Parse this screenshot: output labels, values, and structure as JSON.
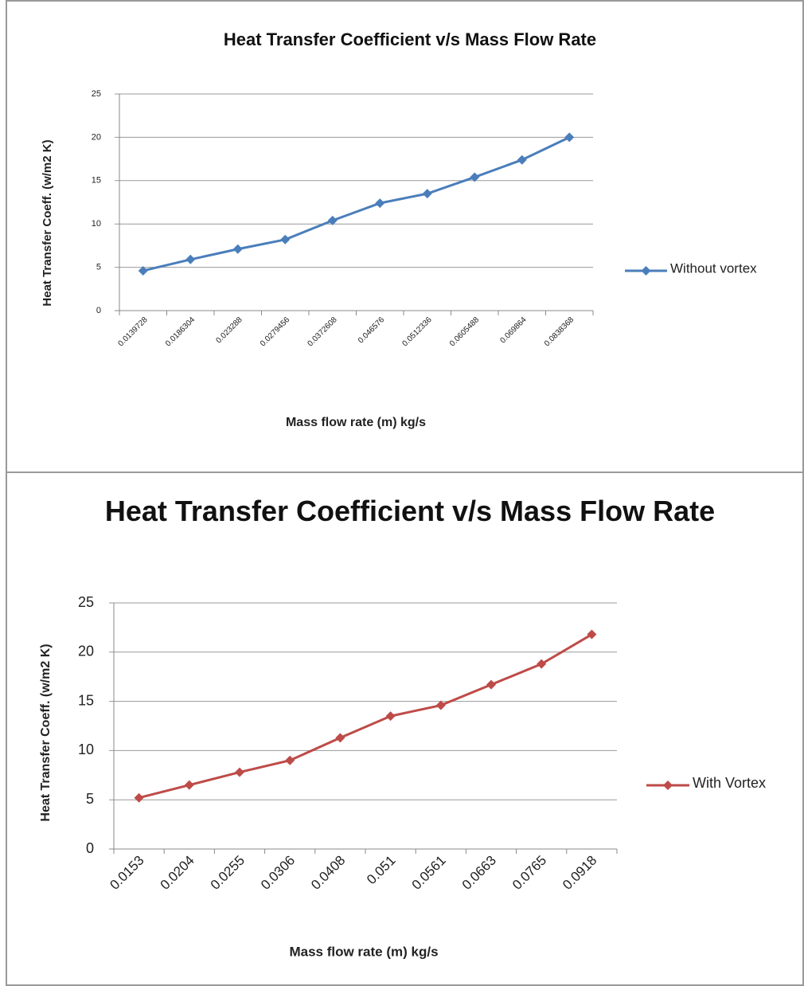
{
  "chart_data": [
    {
      "type": "line",
      "title": "Heat Transfer Coefficient v/s Mass Flow Rate",
      "x_label": "Mass flow rate (m) kg/s",
      "y_label": "Heat Transfer Coeff. (w/m2 K)",
      "categories": [
        "0.0139728",
        "0.0186304",
        "0.023288",
        "0.0279456",
        "0.0372608",
        "0.046576",
        "0.0512336",
        "0.0605488",
        "0.069864",
        "0.0838368"
      ],
      "series": [
        {
          "name": "Without vortex",
          "color": "#4a7ebb",
          "values": [
            4.6,
            5.9,
            7.1,
            8.2,
            10.4,
            12.4,
            13.5,
            15.4,
            17.4,
            20.0
          ]
        }
      ],
      "ylim": [
        0,
        25
      ],
      "yticks": [
        0,
        5,
        10,
        15,
        20,
        25
      ],
      "grid": true,
      "legend": "right"
    },
    {
      "type": "line",
      "title": "Heat Transfer Coefficient v/s Mass Flow Rate",
      "x_label": "Mass flow rate (m) kg/s",
      "y_label": "Heat Transfer Coeff. (w/m2 K)",
      "categories": [
        "0.0153",
        "0.0204",
        "0.0255",
        "0.0306",
        "0.0408",
        "0.051",
        "0.0561",
        "0.0663",
        "0.0765",
        "0.0918"
      ],
      "series": [
        {
          "name": "With Vortex",
          "color": "#be4b48",
          "values": [
            5.2,
            6.5,
            7.8,
            9.0,
            11.3,
            13.5,
            14.6,
            16.7,
            18.8,
            21.8
          ]
        }
      ],
      "ylim": [
        0,
        25
      ],
      "yticks": [
        0,
        5,
        10,
        15,
        20,
        25
      ],
      "grid": true,
      "legend": "right"
    }
  ]
}
